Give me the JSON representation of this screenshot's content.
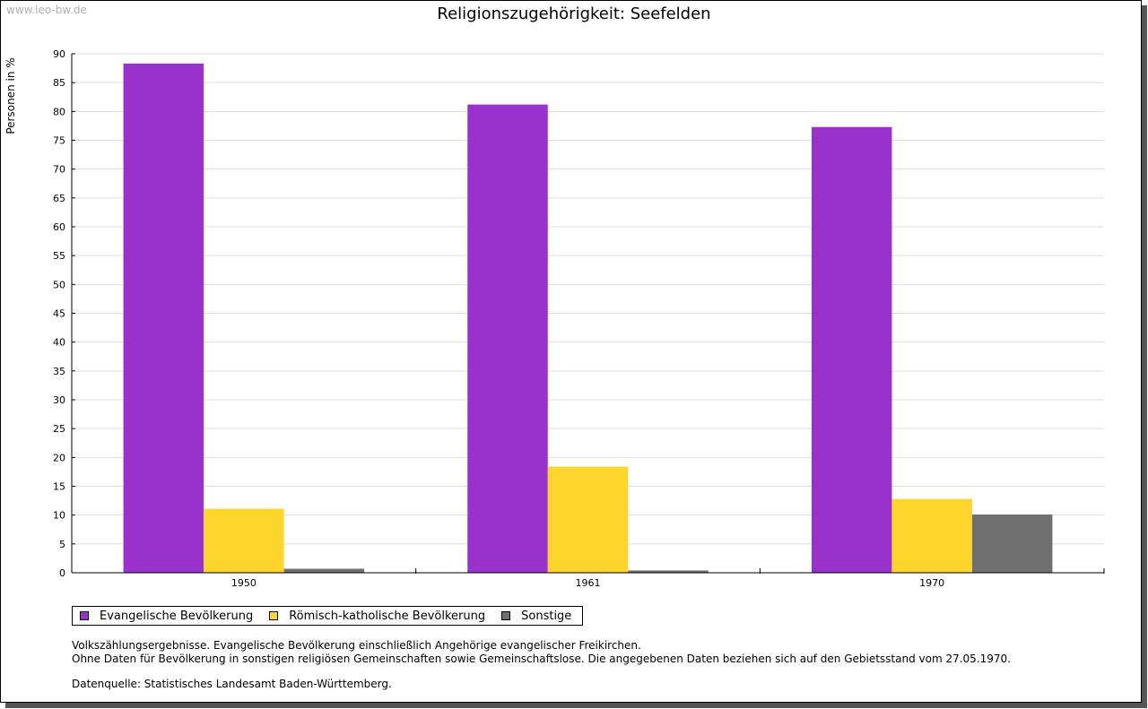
{
  "watermark": "www.leo-bw.de",
  "chart_data": {
    "type": "bar",
    "title": "Religionszugehörigkeit: Seefelden",
    "ylabel": "Personen in %",
    "xlabel": "",
    "ylim": [
      0,
      90
    ],
    "yticks": [
      0,
      5,
      10,
      15,
      20,
      25,
      30,
      35,
      40,
      45,
      50,
      55,
      60,
      65,
      70,
      75,
      80,
      85,
      90
    ],
    "grid": true,
    "legend_position": "bottom-left",
    "categories": [
      "1950",
      "1961",
      "1970"
    ],
    "series": [
      {
        "name": "Evangelische Bevölkerung",
        "color": "#9932cc",
        "values": [
          88.3,
          81.2,
          77.3
        ]
      },
      {
        "name": "Römisch-katholische Bevölkerung",
        "color": "#fdd52d",
        "values": [
          11.1,
          18.4,
          12.8
        ]
      },
      {
        "name": "Sonstige",
        "color": "#707070",
        "values": [
          0.7,
          0.4,
          10.1
        ]
      }
    ]
  },
  "notes": {
    "line1": "Volkszählungsergebnisse. Evangelische Bevölkerung einschließlich Angehörige evangelischer Freikirchen.",
    "line2": "Ohne Daten für Bevölkerung in sonstigen religiösen Gemeinschaften sowie Gemeinschaftslose. Die angegebenen Daten beziehen sich auf den Gebietsstand vom 27.05.1970.",
    "source": "Datenquelle: Statistisches Landesamt Baden-Württemberg."
  }
}
